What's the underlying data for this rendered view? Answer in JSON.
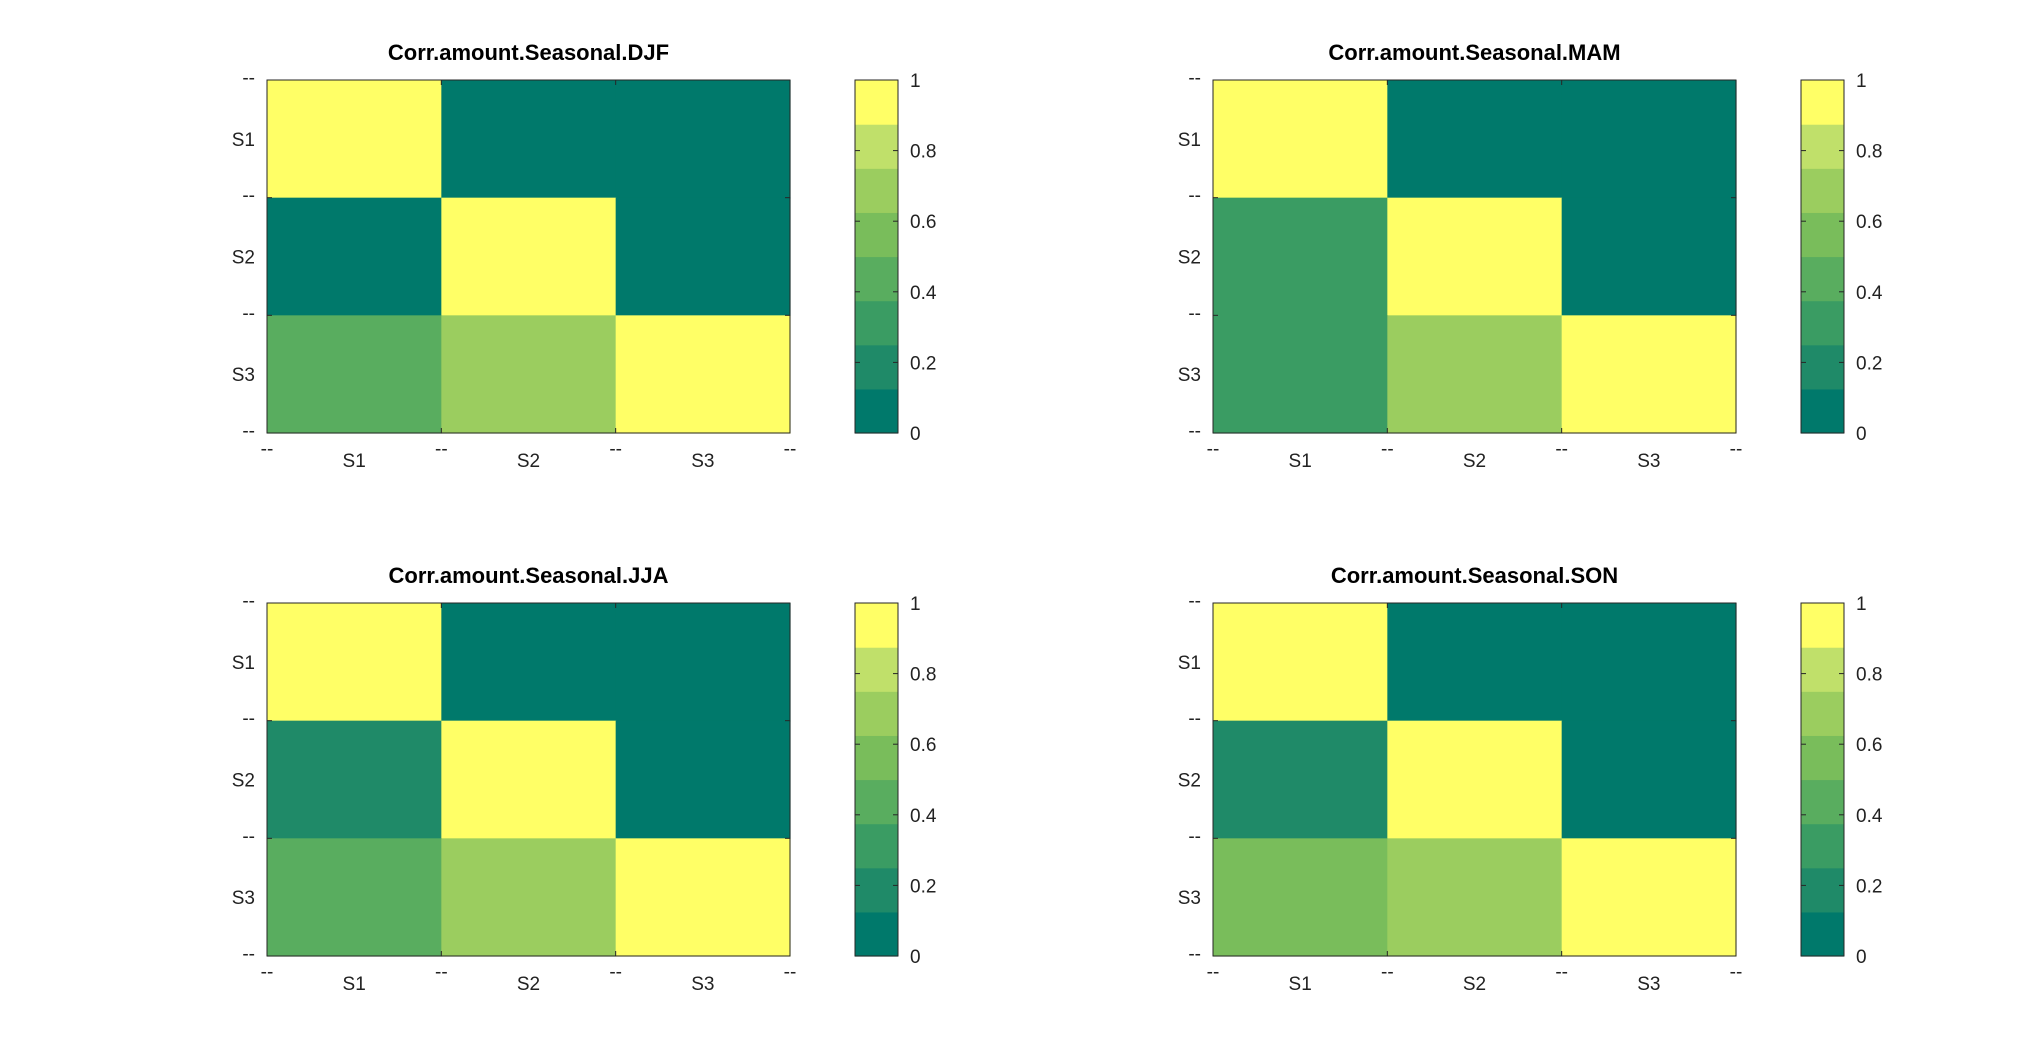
{
  "colormap": [
    "#00796b",
    "#1f8a68",
    "#3a9c63",
    "#59ad5f",
    "#79bd5b",
    "#9bcd5f",
    "#c0e06a",
    "#ffff66"
  ],
  "tick_minor_label": "--",
  "colorbar_ticks": [
    "0",
    "0.2",
    "0.4",
    "0.6",
    "0.8",
    "1"
  ],
  "chart_data": [
    {
      "type": "heatmap",
      "title": "Corr.amount.Seasonal.DJF",
      "x_categories": [
        "S1",
        "S2",
        "S3"
      ],
      "y_categories": [
        "S1",
        "S2",
        "S3"
      ],
      "values": [
        [
          1.0,
          0.0,
          0.0
        ],
        [
          0.0,
          1.0,
          0.0
        ],
        [
          0.45,
          0.72,
          1.0
        ]
      ],
      "clim": [
        0,
        1
      ]
    },
    {
      "type": "heatmap",
      "title": "Corr.amount.Seasonal.MAM",
      "x_categories": [
        "S1",
        "S2",
        "S3"
      ],
      "y_categories": [
        "S1",
        "S2",
        "S3"
      ],
      "values": [
        [
          1.0,
          0.0,
          0.0
        ],
        [
          0.25,
          1.0,
          0.0
        ],
        [
          0.33,
          0.72,
          1.0
        ]
      ],
      "clim": [
        0,
        1
      ]
    },
    {
      "type": "heatmap",
      "title": "Corr.amount.Seasonal.JJA",
      "x_categories": [
        "S1",
        "S2",
        "S3"
      ],
      "y_categories": [
        "S1",
        "S2",
        "S3"
      ],
      "values": [
        [
          1.0,
          0.0,
          0.0
        ],
        [
          0.2,
          1.0,
          0.0
        ],
        [
          0.45,
          0.72,
          1.0
        ]
      ],
      "clim": [
        0,
        1
      ]
    },
    {
      "type": "heatmap",
      "title": "Corr.amount.Seasonal.SON",
      "x_categories": [
        "S1",
        "S2",
        "S3"
      ],
      "y_categories": [
        "S1",
        "S2",
        "S3"
      ],
      "values": [
        [
          1.0,
          0.0,
          0.0
        ],
        [
          0.23,
          1.0,
          0.0
        ],
        [
          0.5,
          0.72,
          1.0
        ]
      ],
      "clim": [
        0,
        1
      ]
    }
  ]
}
